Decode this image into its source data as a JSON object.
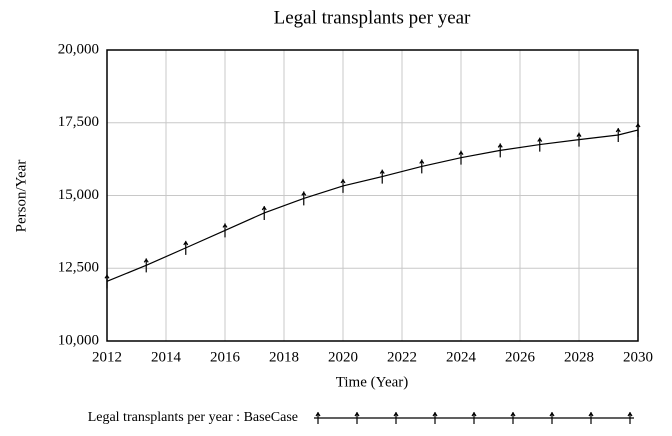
{
  "chart_data": {
    "type": "line",
    "title": "Legal transplants per year",
    "xlabel": "Time (Year)",
    "ylabel": "Person/Year",
    "x": [
      2012,
      2013.33,
      2014.67,
      2016,
      2017.33,
      2018.67,
      2020,
      2021.33,
      2022.67,
      2024,
      2025.33,
      2026.67,
      2028,
      2029.33,
      2030
    ],
    "series": [
      {
        "name": "Legal transplants per year : BaseCase",
        "color": "#000000",
        "values": [
          12050,
          12600,
          13200,
          13800,
          14400,
          14900,
          15330,
          15650,
          16000,
          16300,
          16550,
          16750,
          16920,
          17080,
          17250
        ]
      }
    ],
    "xlim": [
      2012,
      2030
    ],
    "xticks": [
      2012,
      2014,
      2016,
      2018,
      2020,
      2022,
      2024,
      2026,
      2028,
      2030
    ],
    "ylim": [
      10000,
      20000
    ],
    "yticks": [
      {
        "value": 10000,
        "label": "10,000"
      },
      {
        "value": 12500,
        "label": "12,500"
      },
      {
        "value": 15000,
        "label": "15,000"
      },
      {
        "value": 17500,
        "label": "17,500"
      },
      {
        "value": 20000,
        "label": "20,000"
      }
    ],
    "grid": true
  }
}
